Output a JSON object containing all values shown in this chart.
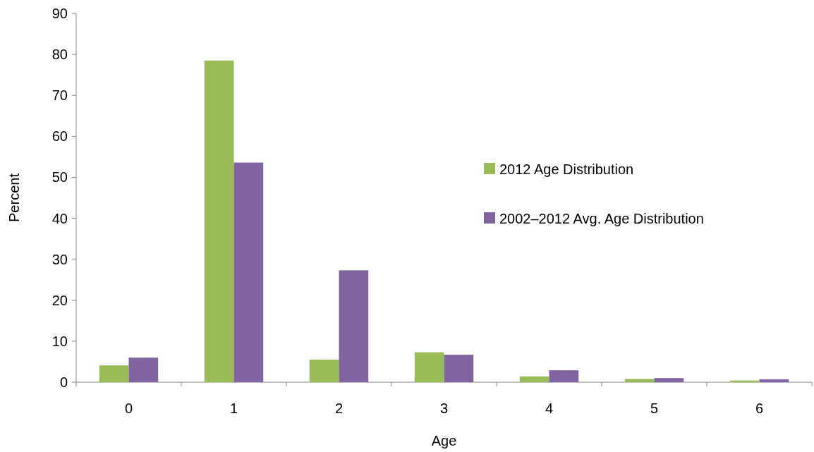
{
  "chart_data": {
    "type": "bar",
    "xlabel": "Age",
    "ylabel": "Percent",
    "categories": [
      "0",
      "1",
      "2",
      "3",
      "4",
      "5",
      "6"
    ],
    "series": [
      {
        "name": "2012 Age Distribution",
        "color": "#9bbb59",
        "values": [
          4.1,
          78.5,
          5.5,
          7.3,
          1.4,
          0.8,
          0.4
        ]
      },
      {
        "name": "2002–2012 Avg. Age Distribution",
        "color": "#8064a2",
        "values": [
          6.0,
          53.6,
          27.3,
          6.7,
          2.9,
          1.0,
          0.7
        ]
      }
    ],
    "ylim": [
      0,
      90
    ],
    "yticks": [
      0,
      10,
      20,
      30,
      40,
      50,
      60,
      70,
      80,
      90
    ],
    "grid": false,
    "legend": "right"
  }
}
